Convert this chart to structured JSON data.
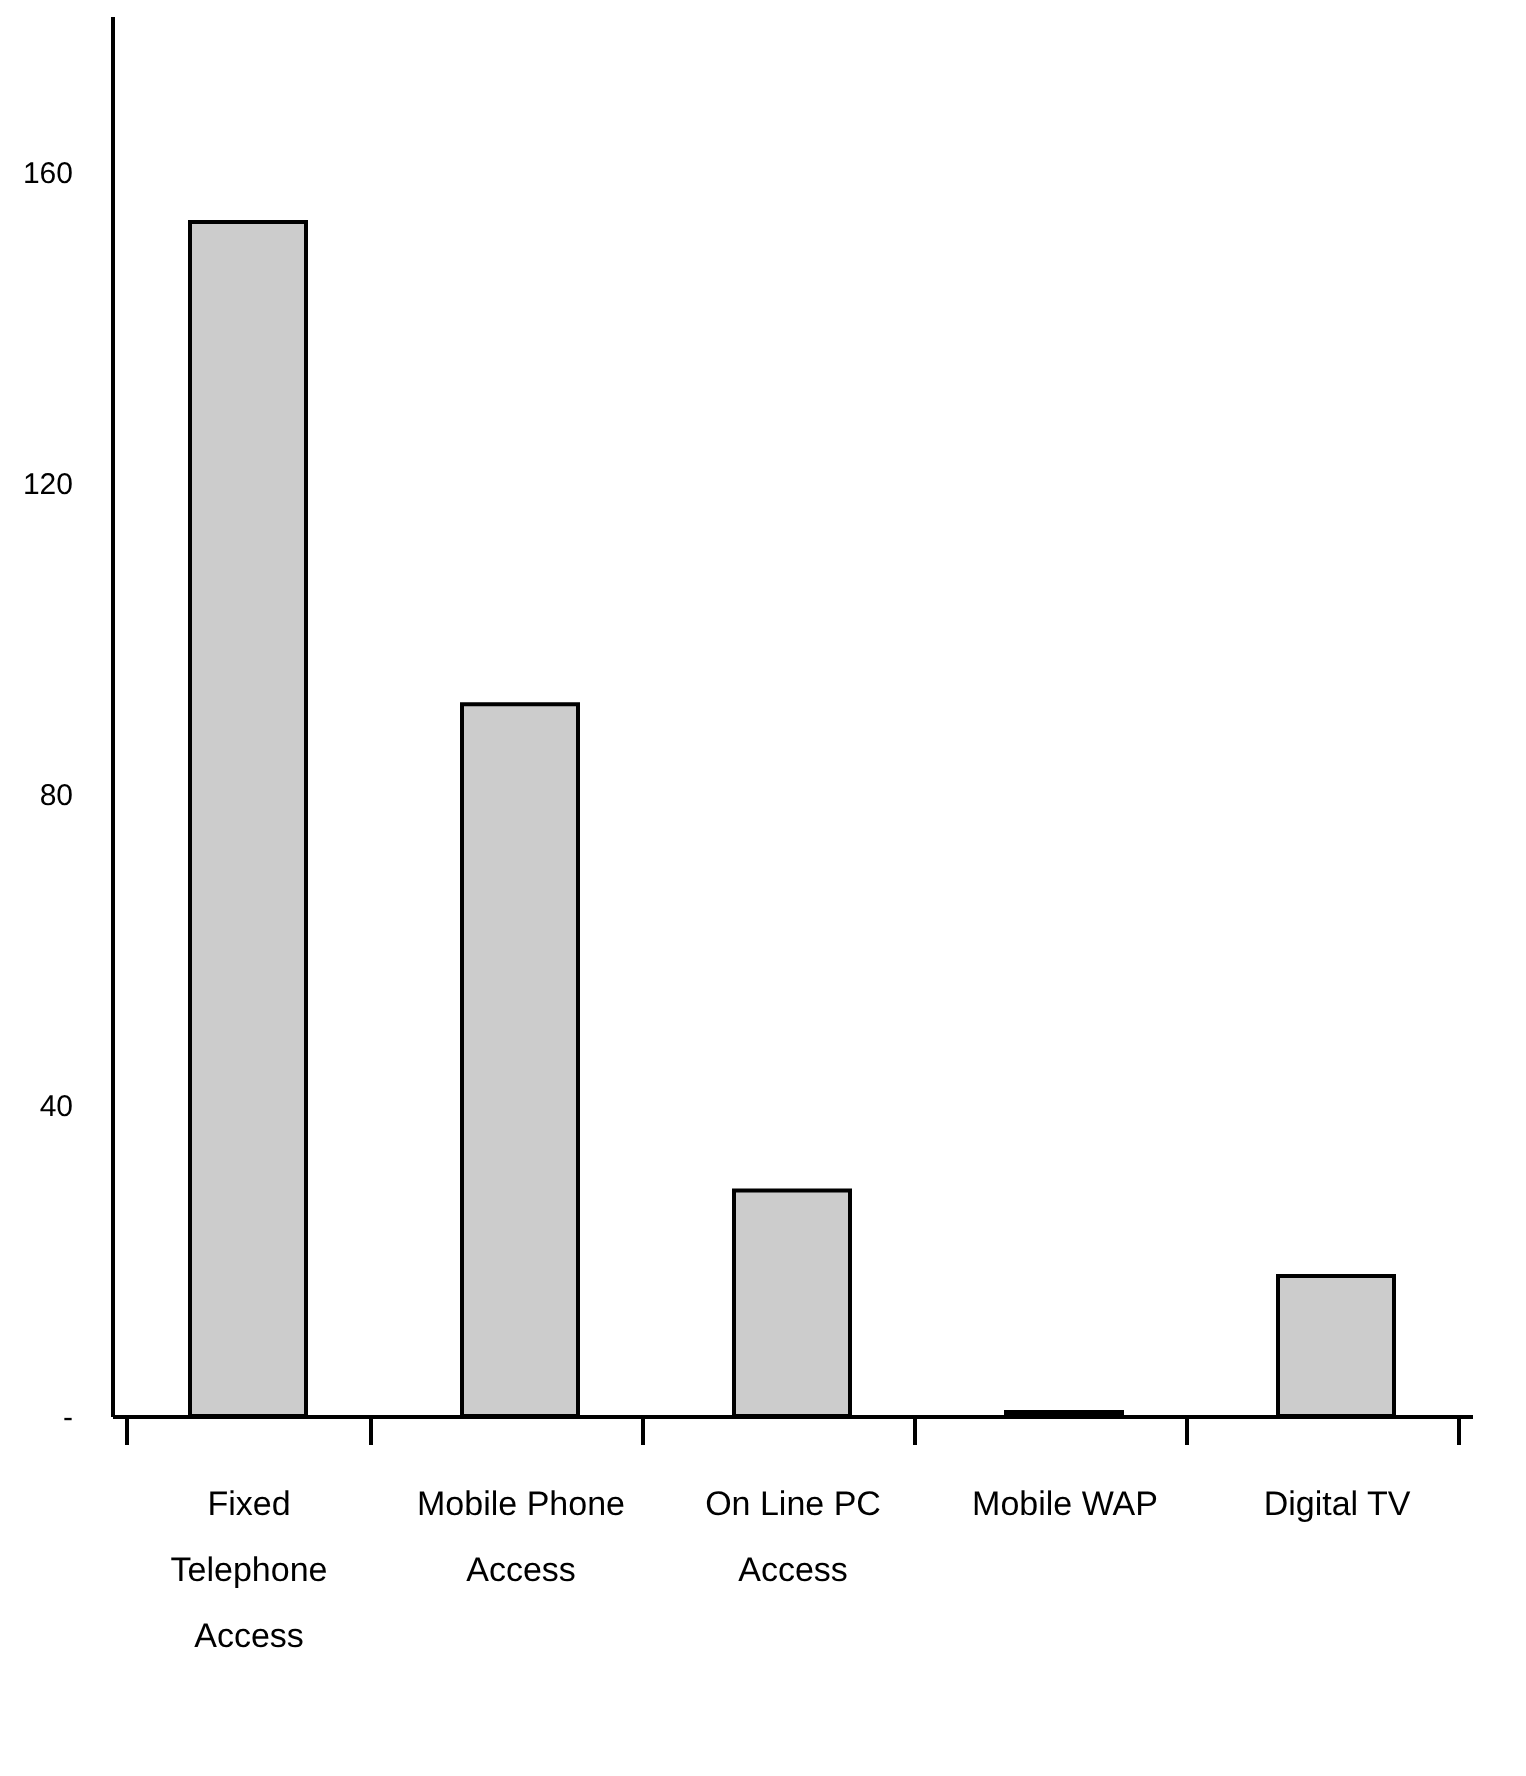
{
  "chart_data": {
    "type": "bar",
    "categories": [
      "Fixed Telephone Access",
      "Mobile Phone Access",
      "On Line PC Access",
      "Mobile WAP",
      "Digital TV"
    ],
    "values": [
      153.5,
      91.5,
      29,
      0.5,
      18
    ],
    "color": "#cccccc",
    "ylim": [
      0,
      180
    ],
    "yticks": [
      {
        "value": 0,
        "label": "-"
      },
      40,
      80,
      120,
      160
    ],
    "grid": false
  }
}
